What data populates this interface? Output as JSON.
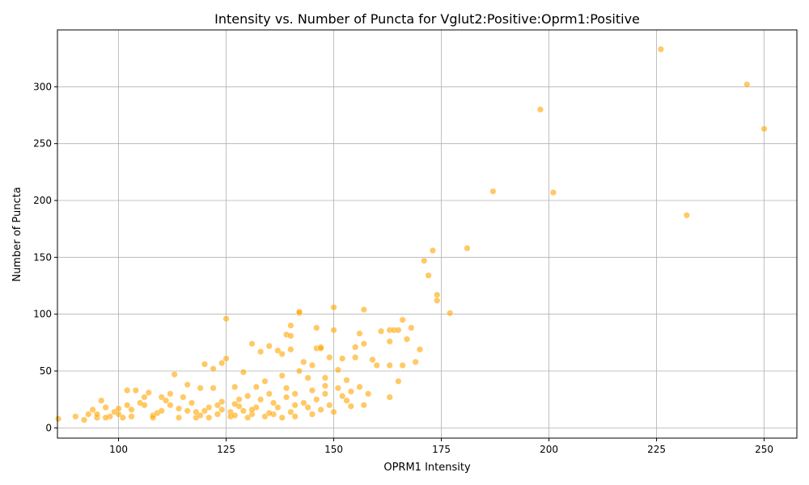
{
  "chart_data": {
    "type": "scatter",
    "title": "Intensity vs. Number of Puncta for Vglut2:Positive:Oprm1:Positive",
    "xlabel": "OPRM1 Intensity",
    "ylabel": "Number of Puncta",
    "xlim": [
      85.8,
      257.6
    ],
    "ylim": [
      -9,
      350
    ],
    "xticks": [
      100,
      125,
      150,
      175,
      200,
      225,
      250
    ],
    "yticks": [
      0,
      50,
      100,
      150,
      200,
      250,
      300
    ],
    "grid": true,
    "point_color": "#FFA500",
    "point_opacity": 0.6,
    "points": [
      [
        86,
        8
      ],
      [
        90,
        10
      ],
      [
        92,
        7
      ],
      [
        93,
        12
      ],
      [
        94,
        16
      ],
      [
        95,
        9
      ],
      [
        96,
        24
      ],
      [
        97,
        18
      ],
      [
        98,
        10
      ],
      [
        99,
        14
      ],
      [
        100,
        12
      ],
      [
        101,
        9
      ],
      [
        102,
        20
      ],
      [
        102,
        33
      ],
      [
        103,
        16
      ],
      [
        104,
        33
      ],
      [
        105,
        22
      ],
      [
        106,
        27
      ],
      [
        107,
        31
      ],
      [
        108,
        11
      ],
      [
        109,
        13
      ],
      [
        110,
        27
      ],
      [
        111,
        24
      ],
      [
        112,
        20
      ],
      [
        113,
        47
      ],
      [
        114,
        17
      ],
      [
        115,
        27
      ],
      [
        116,
        38
      ],
      [
        117,
        22
      ],
      [
        118,
        9
      ],
      [
        119,
        35
      ],
      [
        120,
        15
      ],
      [
        120,
        56
      ],
      [
        121,
        18
      ],
      [
        122,
        35
      ],
      [
        122,
        52
      ],
      [
        123,
        12
      ],
      [
        124,
        23
      ],
      [
        124,
        57
      ],
      [
        125,
        61
      ],
      [
        125,
        96
      ],
      [
        126,
        14
      ],
      [
        127,
        36
      ],
      [
        128,
        25
      ],
      [
        128,
        19
      ],
      [
        129,
        49
      ],
      [
        130,
        28
      ],
      [
        131,
        12
      ],
      [
        131,
        74
      ],
      [
        132,
        36
      ],
      [
        133,
        67
      ],
      [
        134,
        41
      ],
      [
        135,
        30
      ],
      [
        135,
        72
      ],
      [
        136,
        22
      ],
      [
        137,
        68
      ],
      [
        138,
        46
      ],
      [
        138,
        65
      ],
      [
        139,
        82
      ],
      [
        140,
        81
      ],
      [
        140,
        90
      ],
      [
        140,
        69
      ],
      [
        141,
        30
      ],
      [
        141,
        20
      ],
      [
        142,
        101
      ],
      [
        142,
        102
      ],
      [
        142,
        50
      ],
      [
        143,
        58
      ],
      [
        144,
        44
      ],
      [
        145,
        55
      ],
      [
        146,
        88
      ],
      [
        146,
        70
      ],
      [
        147,
        71
      ],
      [
        147,
        70
      ],
      [
        148,
        44
      ],
      [
        149,
        62
      ],
      [
        150,
        86
      ],
      [
        150,
        106
      ],
      [
        151,
        51
      ],
      [
        152,
        61
      ],
      [
        153,
        42
      ],
      [
        154,
        32
      ],
      [
        155,
        62
      ],
      [
        155,
        71
      ],
      [
        156,
        83
      ],
      [
        157,
        104
      ],
      [
        157,
        74
      ],
      [
        158,
        30
      ],
      [
        159,
        60
      ],
      [
        160,
        55
      ],
      [
        161,
        85
      ],
      [
        163,
        55
      ],
      [
        163,
        76
      ],
      [
        163,
        86
      ],
      [
        164,
        86
      ],
      [
        165,
        86
      ],
      [
        166,
        55
      ],
      [
        166,
        95
      ],
      [
        167,
        78
      ],
      [
        168,
        88
      ],
      [
        169,
        58
      ],
      [
        170,
        69
      ],
      [
        171,
        147
      ],
      [
        172,
        134
      ],
      [
        173,
        156
      ],
      [
        174,
        112
      ],
      [
        174,
        117
      ],
      [
        177,
        101
      ],
      [
        181,
        158
      ],
      [
        187,
        208
      ],
      [
        198,
        280
      ],
      [
        201,
        207
      ],
      [
        226,
        333
      ],
      [
        232,
        187
      ],
      [
        246,
        302
      ],
      [
        250,
        263
      ],
      [
        95,
        12
      ],
      [
        97,
        9
      ],
      [
        100,
        17
      ],
      [
        103,
        10
      ],
      [
        106,
        20
      ],
      [
        108,
        9
      ],
      [
        110,
        15
      ],
      [
        112,
        30
      ],
      [
        114,
        9
      ],
      [
        116,
        15
      ],
      [
        118,
        14
      ],
      [
        121,
        9
      ],
      [
        123,
        20
      ],
      [
        126,
        10
      ],
      [
        127,
        21
      ],
      [
        129,
        15
      ],
      [
        130,
        9
      ],
      [
        132,
        18
      ],
      [
        133,
        25
      ],
      [
        134,
        10
      ],
      [
        136,
        12
      ],
      [
        137,
        18
      ],
      [
        138,
        9
      ],
      [
        139,
        27
      ],
      [
        140,
        14
      ],
      [
        141,
        10
      ],
      [
        143,
        22
      ],
      [
        144,
        18
      ],
      [
        145,
        12
      ],
      [
        146,
        25
      ],
      [
        147,
        16
      ],
      [
        148,
        30
      ],
      [
        149,
        20
      ],
      [
        150,
        14
      ],
      [
        151,
        35
      ],
      [
        152,
        28
      ],
      [
        153,
        24
      ],
      [
        154,
        19
      ],
      [
        156,
        36
      ],
      [
        157,
        20
      ],
      [
        163,
        27
      ],
      [
        165,
        41
      ],
      [
        148,
        37
      ],
      [
        145,
        33
      ],
      [
        139,
        35
      ],
      [
        135,
        13
      ],
      [
        131,
        16
      ],
      [
        127,
        11
      ],
      [
        124,
        16
      ],
      [
        119,
        11
      ]
    ]
  }
}
